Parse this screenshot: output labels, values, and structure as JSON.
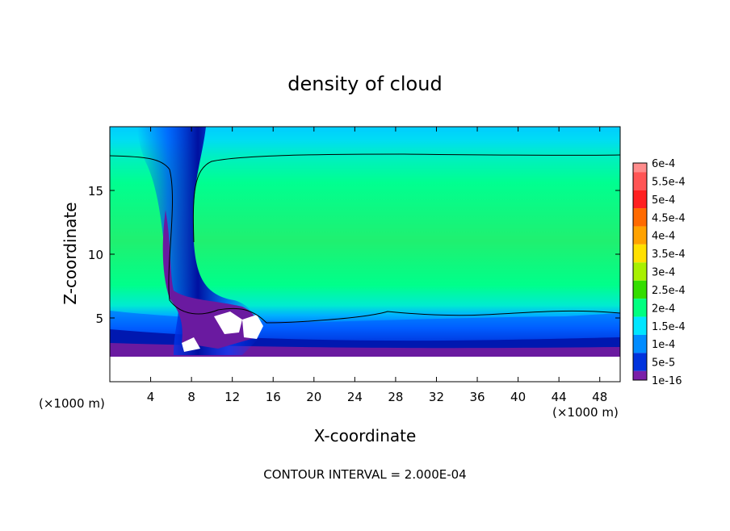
{
  "chart_data": {
    "type": "heatmap",
    "title": "density of cloud",
    "xlabel": "X-coordinate",
    "ylabel": "Z-coordinate",
    "x_unit_left": "(×1000 m)",
    "x_unit_right": "(×1000 m)",
    "xlim": [
      0,
      50
    ],
    "ylim": [
      0,
      20
    ],
    "xticks": [
      "4",
      "8",
      "12",
      "16",
      "20",
      "24",
      "28",
      "32",
      "36",
      "40",
      "44",
      "48"
    ],
    "xtick_values": [
      4,
      8,
      12,
      16,
      20,
      24,
      28,
      32,
      36,
      40,
      44,
      48
    ],
    "yticks": [
      "5",
      "10",
      "15"
    ],
    "ytick_values": [
      5,
      10,
      15
    ],
    "footer": "CONTOUR INTERVAL = 2.000E-04",
    "contour_interval": 0.0002,
    "colorbar": {
      "labels": [
        "6e-4",
        "5.5e-4",
        "5e-4",
        "4.5e-4",
        "4e-4",
        "3.5e-4",
        "3e-4",
        "2.5e-4",
        "2e-4",
        "1.5e-4",
        "1e-4",
        "5e-5",
        "1e-16"
      ],
      "colors": [
        "#ff8c8c",
        "#ff5555",
        "#ff2020",
        "#ff6a00",
        "#ffa200",
        "#ffe000",
        "#a8f000",
        "#33dd00",
        "#00ff80",
        "#00e6ff",
        "#008cff",
        "#0033dd",
        "#7a1fa8"
      ]
    },
    "features": {
      "cloud_base_z": 2.0,
      "cloud_top_z": 17.7,
      "cloud_main_density": 0.00025,
      "contour_level": 0.0002
    }
  }
}
